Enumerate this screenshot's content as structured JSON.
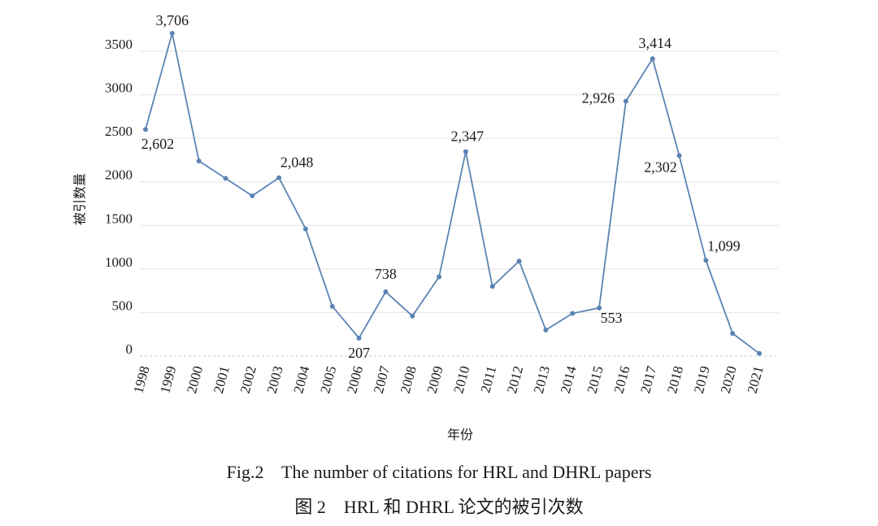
{
  "chart_data": {
    "type": "line",
    "title": "",
    "xlabel": "年份",
    "ylabel": "被引数量",
    "ylim": [
      0,
      3500
    ],
    "yticks": [
      0,
      500,
      1000,
      1500,
      2000,
      2500,
      3000,
      3500
    ],
    "grid": true,
    "legend": "none",
    "line_color": "#5b83b3",
    "categories": [
      "1998",
      "1999",
      "2000",
      "2001",
      "2002",
      "2003",
      "2004",
      "2005",
      "2006",
      "2007",
      "2008",
      "2009",
      "2010",
      "2011",
      "2012",
      "2013",
      "2014",
      "2015",
      "2016",
      "2017",
      "2018",
      "2019",
      "2020",
      "2021"
    ],
    "series": [
      {
        "values": [
          2602,
          3706,
          2240,
          2040,
          1840,
          2048,
          1460,
          570,
          207,
          738,
          460,
          910,
          2347,
          800,
          1090,
          300,
          490,
          553,
          2926,
          3414,
          2302,
          1099,
          260,
          30
        ]
      }
    ],
    "annotations": [
      {
        "category": "1998",
        "text": "2,602"
      },
      {
        "category": "1999",
        "text": "3,706"
      },
      {
        "category": "2003",
        "text": "2,048"
      },
      {
        "category": "2006",
        "text": "207"
      },
      {
        "category": "2007",
        "text": "738"
      },
      {
        "category": "2010",
        "text": "2,347"
      },
      {
        "category": "2015",
        "text": "553"
      },
      {
        "category": "2016",
        "text": "2,926"
      },
      {
        "category": "2017",
        "text": "3,414"
      },
      {
        "category": "2018",
        "text": "2,302"
      },
      {
        "category": "2019",
        "text": "1,099"
      }
    ]
  },
  "caption": {
    "english": "Fig.2    The number of citations for HRL and DHRL papers",
    "chinese": "图 2    HRL 和 DHRL 论文的被引次数"
  }
}
